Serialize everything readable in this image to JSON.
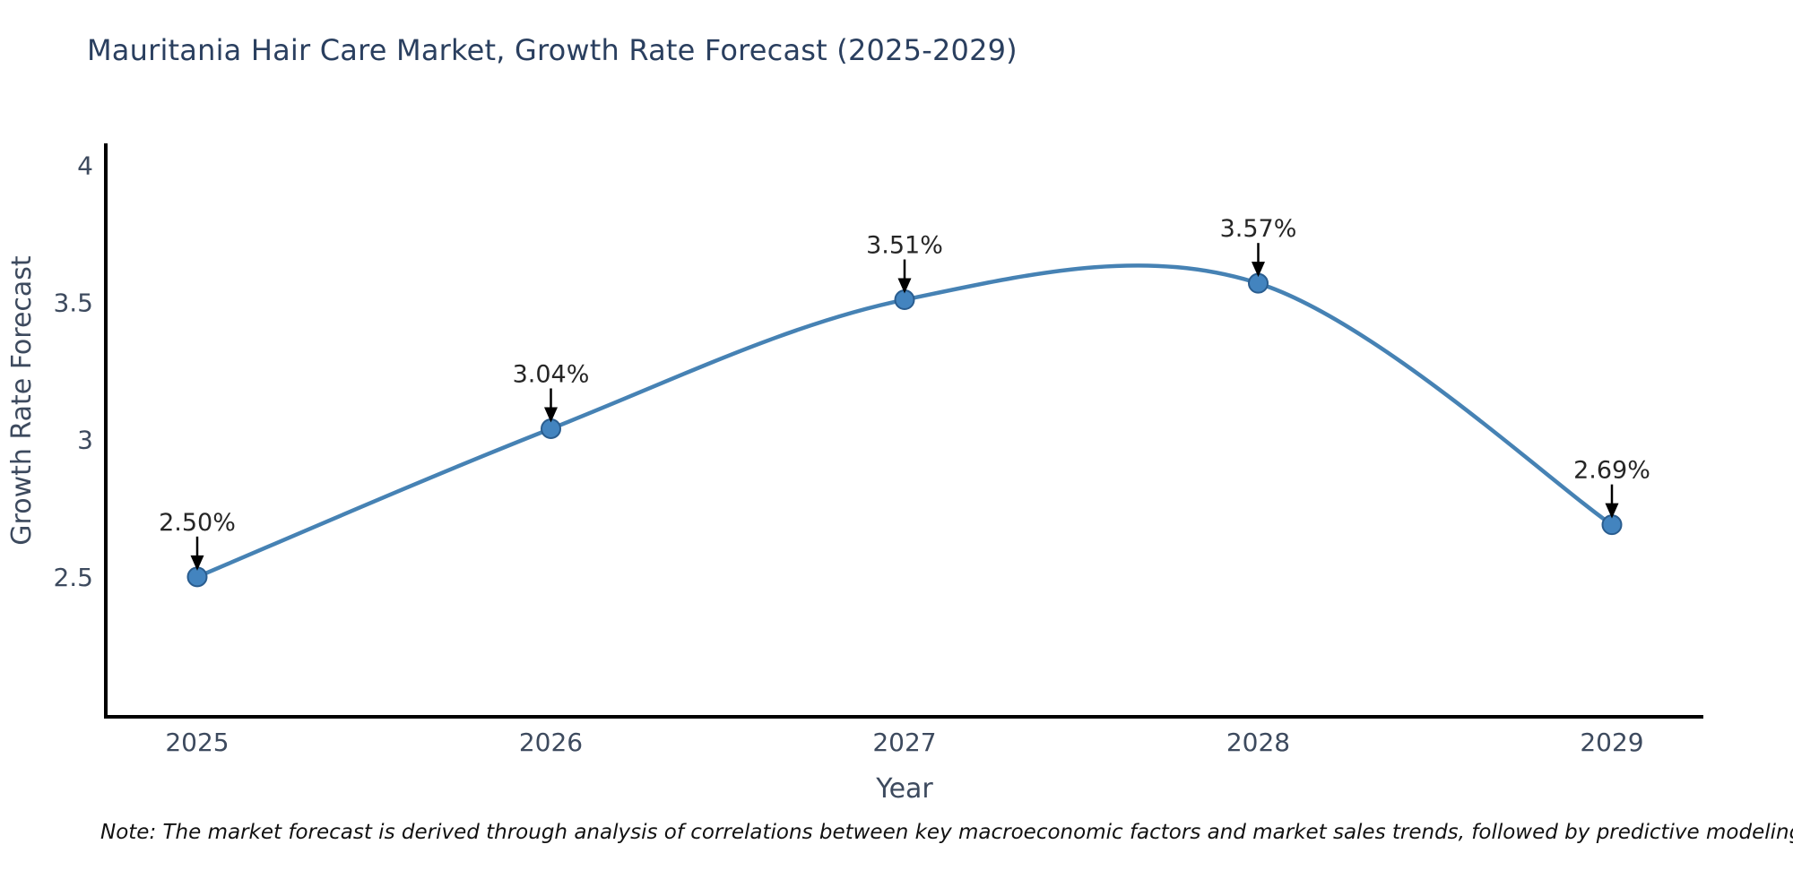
{
  "chart_data": {
    "type": "line",
    "title": "Mauritania Hair Care Market, Growth Rate Forecast (2025-2029)",
    "x": [
      "2025",
      "2026",
      "2027",
      "2028",
      "2029"
    ],
    "series": [
      {
        "name": "Growth Rate Forecast",
        "values": [
          2.5,
          3.04,
          3.51,
          3.57,
          2.69
        ]
      }
    ],
    "point_labels": [
      "2.50%",
      "3.04%",
      "3.51%",
      "3.57%",
      "2.69%"
    ],
    "xlabel": "Year",
    "ylabel": "Growth Rate Forecast",
    "ylim": [
      1.99,
      4.08
    ],
    "yticks": [
      2.5,
      3,
      3.5,
      4
    ],
    "ytick_labels": [
      "2.5",
      "3",
      "3.5",
      "4"
    ],
    "grid": false,
    "legend_position": "none",
    "curve": "smooth",
    "annotations": "value labels with downward arrows at each point",
    "colors": {
      "line": "#4682b4",
      "marker_fill": "#4384bf",
      "marker_edge": "#2a5d8f",
      "arrow": "#000000",
      "label_text": "#262626",
      "axis_text": "#3d4a5e",
      "title_text": "#2a3f5f",
      "spine": "#000000",
      "note_text": "#111111"
    }
  },
  "note": "Note: The market forecast is derived through analysis of correlations between key macroeconomic factors and market sales trends, followed by predictive modeling to project future sales"
}
